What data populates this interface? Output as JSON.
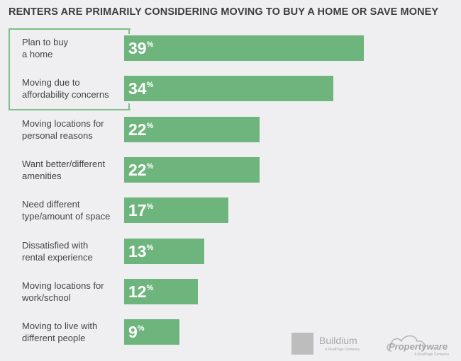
{
  "chart_data": {
    "type": "bar",
    "orientation": "horizontal",
    "title": "RENTERS ARE PRIMARILY CONSIDERING MOVING TO BUY A HOME OR SAVE MONEY",
    "categories": [
      "Plan to buy\na home",
      "Moving due to\naffordability concerns",
      "Moving locations for\npersonal reasons",
      "Want better/different\namenities",
      "Need different\ntype/amount of space",
      "Dissatisfied with\nrental experience",
      "Moving locations for\nwork/school",
      "Moving to live with\ndifferent people"
    ],
    "values": [
      39,
      34,
      22,
      22,
      17,
      13,
      12,
      9
    ],
    "unit": "%",
    "highlighted": [
      0,
      1
    ],
    "bar_color": "#6db57c",
    "highlight_color": "#7dbf8a",
    "grid": false
  },
  "logos": {
    "buildium": {
      "name": "Buildium",
      "tagline": "A RealPage Company"
    },
    "propertyware": {
      "name": "Propertyware",
      "tagline": "A RealPage Company"
    }
  }
}
